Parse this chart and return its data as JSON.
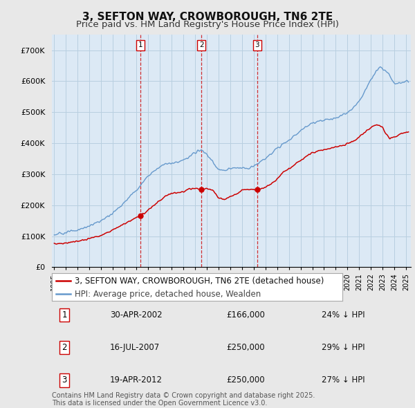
{
  "title": "3, SEFTON WAY, CROWBOROUGH, TN6 2TE",
  "subtitle": "Price paid vs. HM Land Registry's House Price Index (HPI)",
  "ylim": [
    0,
    750000
  ],
  "yticks": [
    0,
    100000,
    200000,
    300000,
    400000,
    500000,
    600000,
    700000
  ],
  "ytick_labels": [
    "£0",
    "£100K",
    "£200K",
    "£300K",
    "£400K",
    "£500K",
    "£600K",
    "£700K"
  ],
  "background_color": "#e8e8e8",
  "plot_background": "#dce9f5",
  "grid_color": "#b8cfe0",
  "red_line_color": "#cc0000",
  "blue_line_color": "#6699cc",
  "transaction_labels": [
    "1",
    "2",
    "3"
  ],
  "legend_red_label": "3, SEFTON WAY, CROWBOROUGH, TN6 2TE (detached house)",
  "legend_blue_label": "HPI: Average price, detached house, Wealden",
  "table_data": [
    [
      "1",
      "30-APR-2002",
      "£166,000",
      "24% ↓ HPI"
    ],
    [
      "2",
      "16-JUL-2007",
      "£250,000",
      "29% ↓ HPI"
    ],
    [
      "3",
      "19-APR-2012",
      "£250,000",
      "27% ↓ HPI"
    ]
  ],
  "footer": "Contains HM Land Registry data © Crown copyright and database right 2025.\nThis data is licensed under the Open Government Licence v3.0.",
  "title_fontsize": 11,
  "subtitle_fontsize": 9.5,
  "axis_fontsize": 8,
  "legend_fontsize": 8.5,
  "table_fontsize": 8.5,
  "footer_fontsize": 7
}
